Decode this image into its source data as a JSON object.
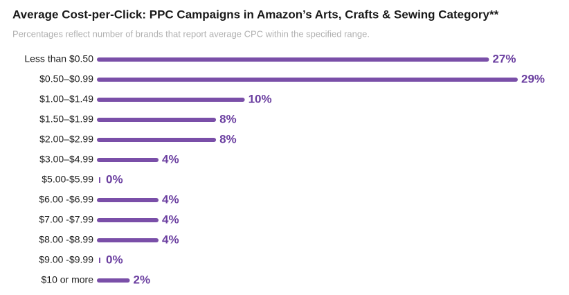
{
  "chart_data": {
    "type": "bar",
    "orientation": "horizontal",
    "title": "Average Cost-per-Click: PPC Campaigns in Amazon’s Arts, Crafts & Sewing Category**",
    "subtitle": "Percentages reflect number of brands that report average CPC within the specified range.",
    "categories": [
      "Less than $0.50",
      "$0.50–$0.99",
      "$1.00–$1.49",
      "$1.50–$1.99",
      "$2.00–$2.99",
      "$3.00–$4.99",
      "$5.00-$5.99",
      "$6.00 -$6.99",
      "$7.00 -$7.99",
      "$8.00 -$8.99",
      "$9.00 -$9.99",
      "$10 or more"
    ],
    "values": [
      27,
      29,
      10,
      8,
      8,
      4,
      0,
      4,
      4,
      4,
      0,
      2
    ],
    "value_labels": [
      "27%",
      "29%",
      "10%",
      "8%",
      "8%",
      "4%",
      "0%",
      "4%",
      "4%",
      "4%",
      "0%",
      "2%"
    ],
    "color": "#7a4fa8"
  }
}
